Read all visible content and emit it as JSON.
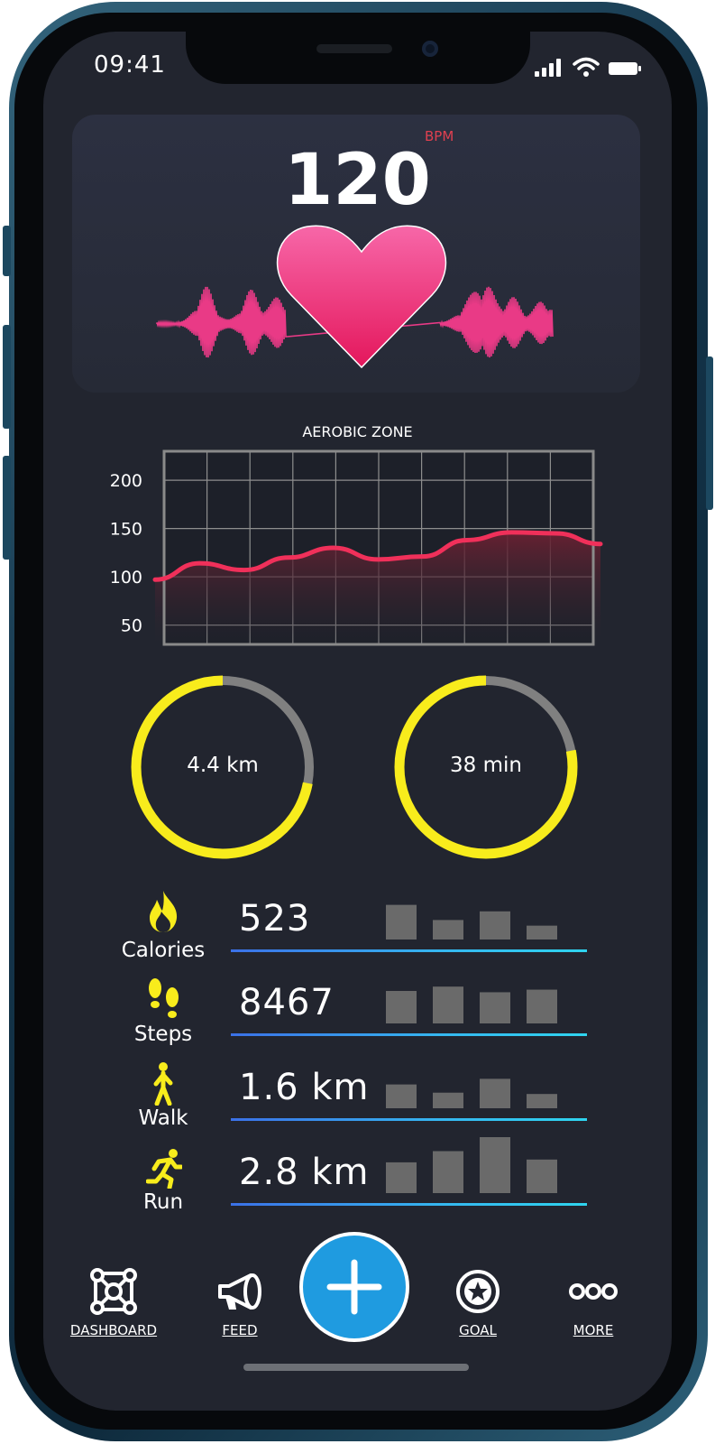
{
  "status_bar": {
    "time": "09:41"
  },
  "heart_rate": {
    "value": "120",
    "unit": "BPM"
  },
  "aerobic_chart": {
    "title": "AEROBIC ZONE",
    "y_ticks": [
      "200",
      "150",
      "100",
      "50"
    ],
    "colors": {
      "line": "#f0305a",
      "grid": "#a0a0a0",
      "fill": "#5a1d2c"
    }
  },
  "chart_data": {
    "type": "line",
    "title": "AEROBIC ZONE",
    "xlabel": "",
    "ylabel": "",
    "ylim": [
      30,
      230
    ],
    "y_ticks": [
      200,
      150,
      100,
      50
    ],
    "grid": true,
    "x": [
      0,
      1,
      2,
      3,
      4,
      5,
      6,
      7,
      8,
      9,
      10
    ],
    "y": [
      97,
      114,
      107,
      120,
      130,
      118,
      121,
      138,
      146,
      145,
      134
    ]
  },
  "rings": [
    {
      "label": "4.4 km",
      "progress": 0.72
    },
    {
      "label": "38 min",
      "progress": 0.78
    }
  ],
  "stats": [
    {
      "icon": "flame-icon",
      "label": "Calories",
      "value": "523",
      "bars": [
        0.8,
        0.45,
        0.65,
        0.32
      ]
    },
    {
      "icon": "footprints-icon",
      "label": "Steps",
      "value": "8467",
      "bars": [
        0.75,
        0.85,
        0.72,
        0.78
      ]
    },
    {
      "icon": "walk-icon",
      "label": "Walk",
      "value": "1.6 km",
      "bars": [
        0.55,
        0.36,
        0.68,
        0.33
      ]
    },
    {
      "icon": "run-icon",
      "label": "Run",
      "value": "2.8 km",
      "bars": [
        0.55,
        0.75,
        1.0,
        0.6
      ]
    }
  ],
  "colors": {
    "accent_yellow": "#f8ec1c",
    "ring_track": "#808080",
    "accent_blue": "#1f9be0",
    "heart_pink": "#ec3f83"
  },
  "nav": {
    "dashboard": "DASHBOARD",
    "feed": "FEED",
    "goal": "GOAL",
    "more": "MORE",
    "add_icon": "plus-icon"
  }
}
